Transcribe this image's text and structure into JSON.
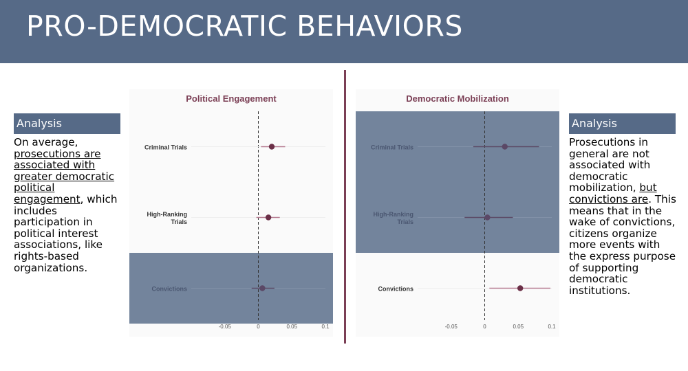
{
  "page": {
    "title": "PRO-DEMOCRATIC BEHAVIORS"
  },
  "left_panel": {
    "heading": "Analysis",
    "text_parts": [
      {
        "text": "On average, ",
        "underline": false
      },
      {
        "text": "prosecutions are associated with greater democratic political engagement",
        "underline": true
      },
      {
        "text": ", which includes participation in political interest associations, like rights-based organizations.",
        "underline": false
      }
    ]
  },
  "right_panel": {
    "heading": "Analysis",
    "text_parts": [
      {
        "text": "Prosecutions in general are not associated with democratic mobilization, ",
        "underline": false
      },
      {
        "text": "but convictions are",
        "underline": true
      },
      {
        "text": ". This means that in the wake of convictions, citizens organize more events with the express purpose of supporting democratic institutions.",
        "underline": false
      }
    ]
  },
  "colors": {
    "header_bg": "#566a87",
    "divider": "#7b3f55",
    "chart_title": "#7b3f55",
    "point": "#6b2f47",
    "ci_line": "#b57b90",
    "highlight_bg": "#566a87"
  },
  "chart_data": [
    {
      "type": "scatter",
      "title": "Political Engagement",
      "xlabel": "",
      "ylabel": "",
      "categories": [
        "Criminal Trials",
        "High-Ranking Trials",
        "Convictions"
      ],
      "category_lines": [
        [
          "Criminal Trials"
        ],
        [
          "High-Ranking",
          "Trials"
        ],
        [
          "Convictions"
        ]
      ],
      "estimates": [
        0.02,
        0.015,
        0.006
      ],
      "ci_low": [
        0.004,
        -0.003,
        -0.01
      ],
      "ci_high": [
        0.04,
        0.032,
        0.024
      ],
      "highlighted": [
        false,
        false,
        true
      ],
      "xlim": [
        -0.1,
        0.1
      ],
      "xticks": [
        -0.05,
        0,
        0.05,
        0.1
      ],
      "xtick_labels": [
        "-0.05",
        "0",
        "0.05",
        "0.1"
      ],
      "reference_line": 0,
      "grid": false
    },
    {
      "type": "scatter",
      "title": "Democratic Mobilization",
      "xlabel": "",
      "ylabel": "",
      "categories": [
        "Criminal Trials",
        "High-Ranking Trials",
        "Convictions"
      ],
      "category_lines": [
        [
          "Criminal Trials"
        ],
        [
          "High-Ranking",
          "Trials"
        ],
        [
          "Convictions"
        ]
      ],
      "estimates": [
        0.03,
        0.004,
        0.053
      ],
      "ci_low": [
        -0.017,
        -0.03,
        0.007
      ],
      "ci_high": [
        0.081,
        0.042,
        0.098
      ],
      "highlighted": [
        true,
        true,
        false
      ],
      "xlim": [
        -0.1,
        0.1
      ],
      "xticks": [
        -0.05,
        0,
        0.05,
        0.1
      ],
      "xtick_labels": [
        "-0.05",
        "0",
        "0.05",
        "0.1"
      ],
      "reference_line": 0,
      "grid": false
    }
  ]
}
